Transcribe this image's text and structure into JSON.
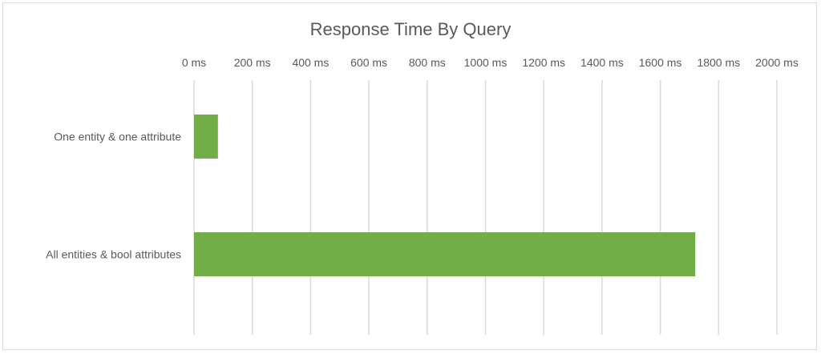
{
  "chart_data": {
    "type": "bar",
    "orientation": "horizontal",
    "title": "Response Time By Query",
    "xlabel": "",
    "ylabel": "",
    "categories": [
      "One entity & one attribute",
      "All entities & bool attributes"
    ],
    "values": [
      82,
      1720
    ],
    "xlim": [
      0,
      2000
    ],
    "x_ticks": [
      0,
      200,
      400,
      600,
      800,
      1000,
      1200,
      1400,
      1600,
      1800,
      2000
    ],
    "x_tick_labels": [
      "0 ms",
      "200 ms",
      "400 ms",
      "600 ms",
      "800 ms",
      "1000 ms",
      "1200 ms",
      "1400 ms",
      "1600 ms",
      "1800 ms",
      "2000 ms"
    ],
    "x_axis_position": "top",
    "grid": true,
    "legend": "none",
    "colors": {
      "bar": "#70ad47",
      "grid": "#d9d9d9",
      "text": "#595959"
    }
  }
}
